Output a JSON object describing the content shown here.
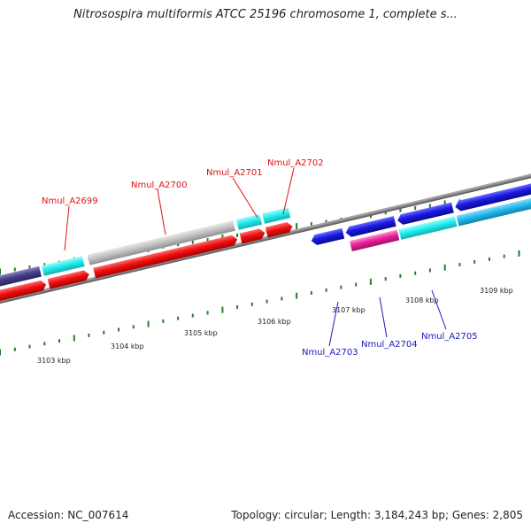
{
  "title": "Nitrosospira multiformis ATCC 25196 chromosome 1, complete s...",
  "footer": {
    "accession": "Accession: NC_007614",
    "topology": "Topology: circular; Length: 3,184,243 bp; Genes: 2,805"
  },
  "colors": {
    "backbone": "#8a8a8a",
    "tick": "#2a7a2a",
    "gene_red": "#ee1111",
    "gene_cyan": "#22eeee",
    "gene_blue": "#1a1ae0",
    "gene_gray": "#c0c0c0",
    "gene_navy": "#443f88",
    "gene_pink": "#e8229a",
    "gene_lightblue": "#22bbee",
    "label_red": "#dd1111",
    "label_blue": "#1a1abb"
  },
  "kbp_labels": [
    "3103 kbp",
    "3104 kbp",
    "3105 kbp",
    "3106 kbp",
    "3107 kbp",
    "3108 kbp",
    "3109 kbp"
  ],
  "upper_labels": [
    "Nmul_A2699",
    "Nmul_A2700",
    "Nmul_A2701",
    "Nmul_A2702"
  ],
  "lower_labels": [
    "Nmul_A2703",
    "Nmul_A2704",
    "Nmul_A2705"
  ]
}
